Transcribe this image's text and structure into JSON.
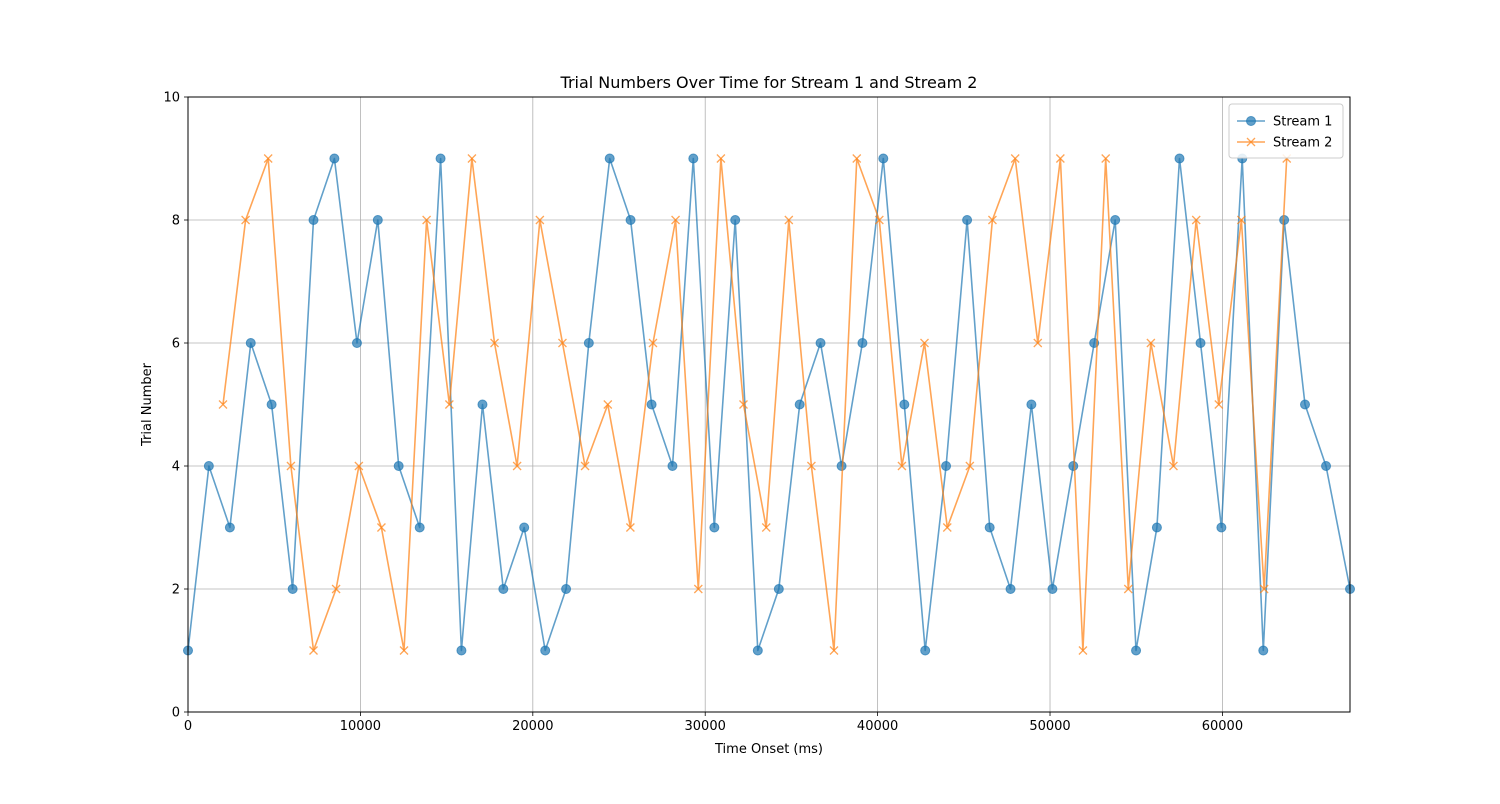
{
  "chart_data": {
    "type": "line",
    "title": "Trial Numbers Over Time for Stream 1 and Stream 2",
    "xlabel": "Time Onset (ms)",
    "ylabel": "Trial Number",
    "xlim": [
      0,
      67400
    ],
    "ylim": [
      0,
      10
    ],
    "xticks": [
      0,
      10000,
      20000,
      30000,
      40000,
      50000,
      60000
    ],
    "yticks": [
      0,
      2,
      4,
      6,
      8,
      10
    ],
    "grid": true,
    "legend_position": "top-right",
    "series": [
      {
        "name": "Stream 1",
        "color": "#1f77b4",
        "marker": "circle",
        "x": [
          0,
          1210,
          2430,
          3640,
          4850,
          6070,
          7280,
          8490,
          9800,
          11010,
          12220,
          13440,
          14650,
          15860,
          17080,
          18290,
          19500,
          20720,
          21930,
          23250,
          24460,
          25670,
          26890,
          28100,
          29310,
          30530,
          31740,
          33050,
          34270,
          35480,
          36690,
          37910,
          39120,
          40330,
          41550,
          42760,
          43970,
          45190,
          46500,
          47710,
          48920,
          50140,
          51350,
          52560,
          53780,
          54990,
          56200,
          57510,
          58730,
          59940,
          61150,
          62370,
          63580,
          64790,
          66010,
          67400
        ],
        "y": [
          1,
          4,
          3,
          6,
          5,
          2,
          8,
          9,
          6,
          8,
          4,
          3,
          9,
          1,
          5,
          2,
          3,
          1,
          2,
          6,
          9,
          8,
          5,
          4,
          9,
          3,
          8,
          1,
          2,
          5,
          6,
          4,
          6,
          9,
          5,
          1,
          4,
          8,
          3,
          2,
          5,
          2,
          4,
          6,
          8,
          1,
          3,
          9,
          6,
          3,
          9,
          1,
          8,
          5,
          4,
          2
        ]
      },
      {
        "name": "Stream 2",
        "color": "#ff7f0e",
        "marker": "x",
        "x": [
          2030,
          3340,
          4650,
          5970,
          7280,
          8590,
          9910,
          11220,
          12530,
          13840,
          15160,
          16470,
          17780,
          19090,
          20410,
          21720,
          23030,
          24350,
          25660,
          26970,
          28280,
          29600,
          30910,
          32220,
          33540,
          34850,
          36160,
          37470,
          38790,
          40100,
          41410,
          42720,
          44040,
          45350,
          46660,
          47980,
          49290,
          50600,
          51910,
          53230,
          54540,
          55850,
          57160,
          58480,
          59790,
          61100,
          62420,
          63730
        ],
        "y": [
          5,
          8,
          9,
          4,
          1,
          2,
          4,
          3,
          1,
          8,
          5,
          9,
          6,
          4,
          8,
          6,
          4,
          5,
          3,
          6,
          8,
          2,
          9,
          5,
          3,
          8,
          4,
          1,
          9,
          8,
          4,
          6,
          3,
          4,
          8,
          9,
          6,
          9,
          1,
          9,
          2,
          6,
          4,
          8,
          5,
          8,
          2,
          9
        ]
      }
    ]
  }
}
